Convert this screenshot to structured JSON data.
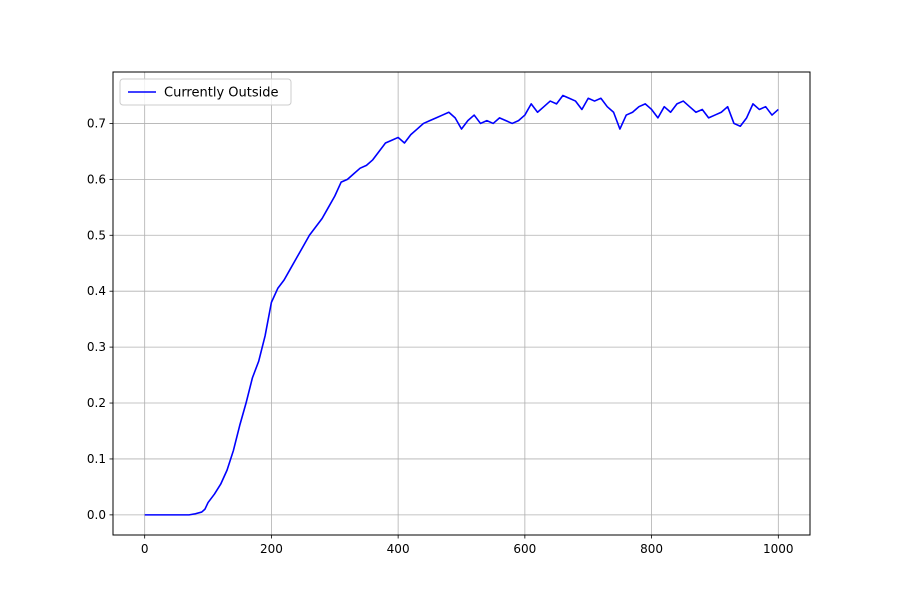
{
  "chart_data": {
    "type": "line",
    "title": "",
    "xlabel": "",
    "ylabel": "",
    "xlim": [
      -50,
      1050
    ],
    "ylim": [
      -0.036,
      0.792
    ],
    "xticks": [
      0,
      200,
      400,
      600,
      800,
      1000
    ],
    "yticks": [
      0.0,
      0.1,
      0.2,
      0.3,
      0.4,
      0.5,
      0.6,
      0.7
    ],
    "xtick_labels": [
      "0",
      "200",
      "400",
      "600",
      "800",
      "1000"
    ],
    "ytick_labels": [
      "0.0",
      "0.1",
      "0.2",
      "0.3",
      "0.4",
      "0.5",
      "0.6",
      "0.7"
    ],
    "grid": true,
    "legend_position": "upper-left",
    "series": [
      {
        "name": "Currently Outside",
        "color": "#0000ff",
        "x": [
          0,
          20,
          40,
          60,
          70,
          80,
          90,
          95,
          100,
          110,
          120,
          130,
          140,
          150,
          160,
          170,
          180,
          190,
          200,
          210,
          220,
          230,
          240,
          250,
          260,
          270,
          280,
          290,
          300,
          310,
          320,
          330,
          340,
          350,
          360,
          370,
          380,
          390,
          400,
          410,
          420,
          430,
          440,
          450,
          460,
          470,
          480,
          490,
          500,
          510,
          520,
          530,
          540,
          550,
          560,
          570,
          580,
          590,
          600,
          610,
          620,
          630,
          640,
          650,
          660,
          670,
          680,
          690,
          700,
          710,
          720,
          730,
          740,
          750,
          760,
          770,
          780,
          790,
          800,
          810,
          820,
          830,
          840,
          850,
          860,
          870,
          880,
          890,
          900,
          910,
          920,
          930,
          940,
          950,
          960,
          970,
          980,
          990,
          1000
        ],
        "y": [
          0.0,
          0.0,
          0.0,
          0.0,
          0.0,
          0.002,
          0.005,
          0.01,
          0.022,
          0.037,
          0.055,
          0.08,
          0.115,
          0.16,
          0.2,
          0.245,
          0.275,
          0.32,
          0.38,
          0.405,
          0.42,
          0.44,
          0.46,
          0.48,
          0.5,
          0.515,
          0.53,
          0.55,
          0.57,
          0.595,
          0.6,
          0.61,
          0.62,
          0.625,
          0.635,
          0.65,
          0.665,
          0.67,
          0.675,
          0.665,
          0.68,
          0.69,
          0.7,
          0.705,
          0.71,
          0.715,
          0.72,
          0.71,
          0.69,
          0.705,
          0.715,
          0.7,
          0.705,
          0.7,
          0.71,
          0.705,
          0.7,
          0.705,
          0.715,
          0.735,
          0.72,
          0.73,
          0.74,
          0.735,
          0.75,
          0.745,
          0.74,
          0.725,
          0.745,
          0.74,
          0.745,
          0.73,
          0.72,
          0.69,
          0.715,
          0.72,
          0.73,
          0.735,
          0.725,
          0.71,
          0.73,
          0.72,
          0.735,
          0.74,
          0.73,
          0.72,
          0.725,
          0.71,
          0.715,
          0.72,
          0.73,
          0.7,
          0.695,
          0.71,
          0.735,
          0.725,
          0.73,
          0.715,
          0.725
        ]
      }
    ]
  }
}
